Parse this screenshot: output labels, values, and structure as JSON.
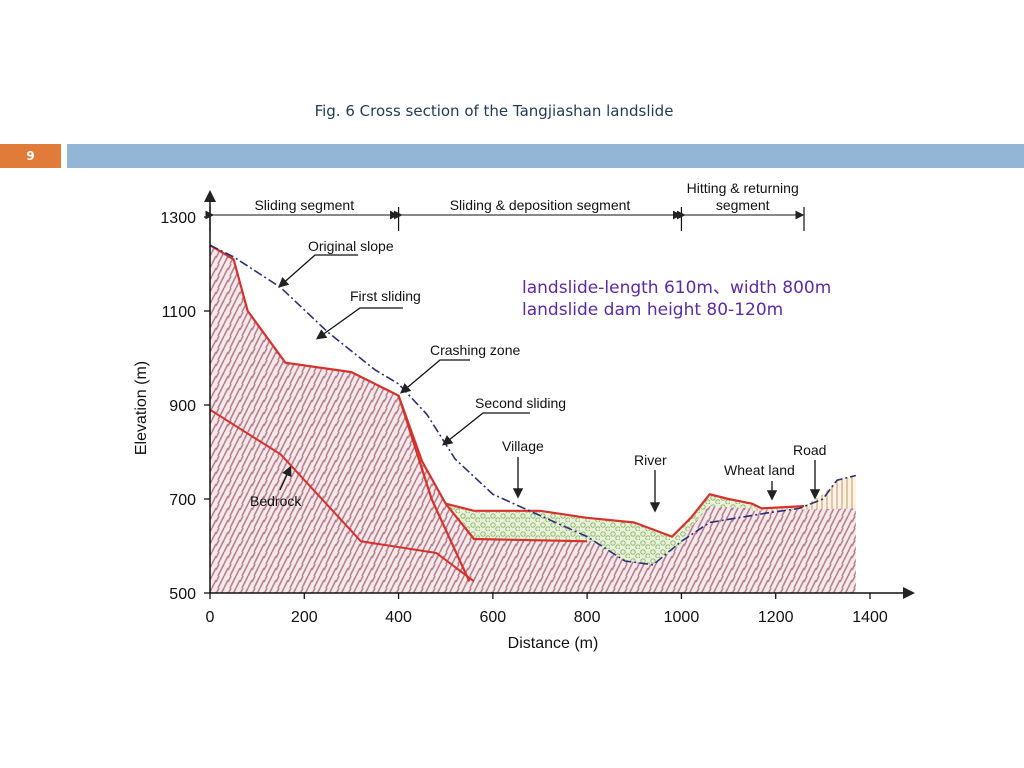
{
  "slide": {
    "title": "Fig. 6 Cross section of the Tangjiashan landslide",
    "page_number": "9",
    "annotations": [
      "landslide-length 610m、width 800m",
      "landslide dam height 80-120m"
    ]
  },
  "chart_data": {
    "type": "diagram",
    "xlabel": "Distance (m)",
    "ylabel": "Elevation (m)",
    "xlim": [
      0,
      1400
    ],
    "ylim": [
      500,
      1300
    ],
    "xticks": [
      "0",
      "200",
      "400",
      "600",
      "800",
      "1000",
      "1200",
      "1400"
    ],
    "yticks": [
      "500",
      "700",
      "900",
      "1100",
      "1300"
    ],
    "segments": [
      {
        "label": "Sliding segment",
        "from": 0,
        "to": 400
      },
      {
        "label": "Sliding & deposition segment",
        "from": 400,
        "to": 1000
      },
      {
        "label": "Hitting & returning segment",
        "from": 1000,
        "to": 1260
      }
    ],
    "labels": {
      "original_slope": "Original slope",
      "first_sliding": "First sliding",
      "crashing_zone": "Crashing zone",
      "second_sliding": "Second sliding",
      "village": "Village",
      "river": "River",
      "wheat_land": "Wheat land",
      "road": "Road",
      "bedrock": "Bedrock"
    },
    "original_slope_profile": [
      [
        0,
        1240
      ],
      [
        50,
        1215
      ],
      [
        150,
        1150
      ],
      [
        250,
        1055
      ],
      [
        350,
        975
      ],
      [
        400,
        945
      ],
      [
        460,
        880
      ],
      [
        520,
        785
      ],
      [
        600,
        710
      ],
      [
        700,
        665
      ],
      [
        800,
        620
      ],
      [
        880,
        568
      ],
      [
        940,
        560
      ],
      [
        1000,
        610
      ],
      [
        1060,
        650
      ],
      [
        1120,
        660
      ],
      [
        1180,
        670
      ],
      [
        1250,
        680
      ],
      [
        1300,
        700
      ],
      [
        1330,
        740
      ],
      [
        1370,
        750
      ]
    ],
    "first_sliding_surface": [
      [
        0,
        1240
      ],
      [
        50,
        1210
      ],
      [
        80,
        1100
      ],
      [
        160,
        990
      ],
      [
        300,
        970
      ],
      [
        400,
        920
      ],
      [
        450,
        780
      ],
      [
        500,
        690
      ],
      [
        560,
        615
      ],
      [
        800,
        610
      ]
    ],
    "second_sliding_surface": [
      [
        400,
        920
      ],
      [
        470,
        700
      ],
      [
        550,
        525
      ]
    ],
    "deposit_top": [
      [
        500,
        690
      ],
      [
        560,
        675
      ],
      [
        700,
        675
      ],
      [
        800,
        660
      ],
      [
        900,
        650
      ],
      [
        980,
        620
      ],
      [
        1020,
        660
      ],
      [
        1060,
        710
      ],
      [
        1100,
        700
      ],
      [
        1150,
        690
      ],
      [
        1170,
        680
      ],
      [
        1260,
        685
      ]
    ],
    "bedrock_base": [
      [
        0,
        890
      ],
      [
        150,
        795
      ],
      [
        320,
        610
      ],
      [
        480,
        585
      ],
      [
        560,
        525
      ]
    ],
    "river_channel_bed": [
      [
        800,
        615
      ],
      [
        880,
        570
      ],
      [
        940,
        560
      ],
      [
        1000,
        605
      ]
    ]
  }
}
